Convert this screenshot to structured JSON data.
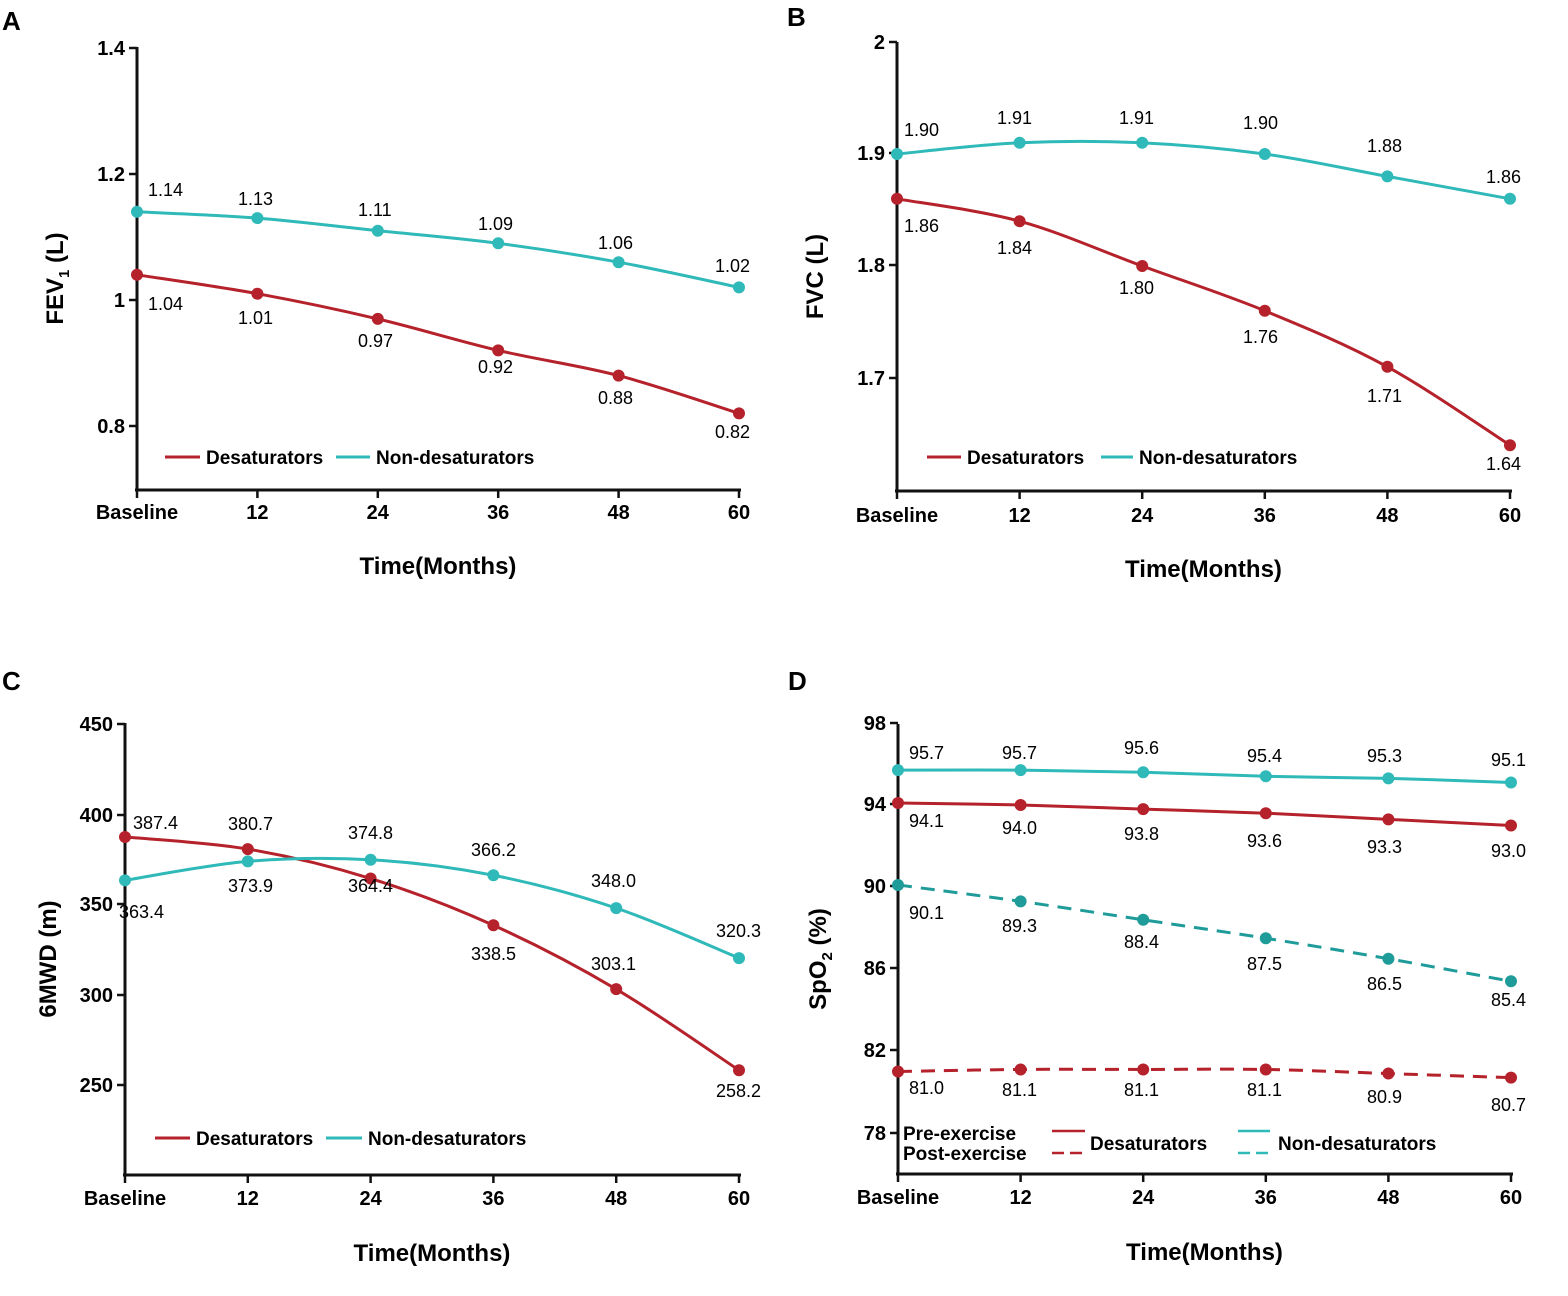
{
  "colors": {
    "desaturators": "#B5222B",
    "non_desaturators": "#2FB9B8",
    "non_desaturators_post": "#1F9C9A",
    "axis": "#111111"
  },
  "chart_data": [
    {
      "panel": "A",
      "type": "line",
      "xlabel": "Time(Months)",
      "ylabel_main": "FEV",
      "ylabel_sub": "1",
      "ylabel_tail": " (L)",
      "categories": [
        "Baseline",
        "12",
        "24",
        "36",
        "48",
        "60"
      ],
      "yticks": [
        "0.8",
        "1",
        "1.2",
        "1.4"
      ],
      "ylim": [
        0.7,
        1.4
      ],
      "series": [
        {
          "name": "Desaturators",
          "color_key": "desaturators",
          "values": [
            1.04,
            1.01,
            0.97,
            0.92,
            0.88,
            0.82
          ],
          "labels": [
            "1.04",
            "1.01",
            "0.97",
            "0.92",
            "0.88",
            "0.82"
          ]
        },
        {
          "name": "Non-desaturators",
          "color_key": "non_desaturators",
          "values": [
            1.14,
            1.13,
            1.11,
            1.09,
            1.06,
            1.02
          ],
          "labels": [
            "1.14",
            "1.13",
            "1.11",
            "1.09",
            "1.06",
            "1.02"
          ]
        }
      ],
      "legend": [
        "Desaturators",
        "Non-desaturators"
      ]
    },
    {
      "panel": "B",
      "type": "line",
      "xlabel": "Time(Months)",
      "ylabel_main": "FVC (L)",
      "categories": [
        "Baseline",
        "12",
        "24",
        "36",
        "48",
        "60"
      ],
      "yticks": [
        "1.7",
        "1.8",
        "1.9",
        "2"
      ],
      "ylim": [
        1.6,
        2.0
      ],
      "series": [
        {
          "name": "Desaturators",
          "color_key": "desaturators",
          "values": [
            1.86,
            1.84,
            1.8,
            1.76,
            1.71,
            1.64
          ],
          "labels": [
            "1.86",
            "1.84",
            "1.80",
            "1.76",
            "1.71",
            "1.64"
          ]
        },
        {
          "name": "Non-desaturators",
          "color_key": "non_desaturators",
          "values": [
            1.9,
            1.91,
            1.91,
            1.9,
            1.88,
            1.86
          ],
          "labels": [
            "1.90",
            "1.91",
            "1.91",
            "1.90",
            "1.88",
            "1.86"
          ]
        }
      ],
      "legend": [
        "Desaturators",
        "Non-desaturators"
      ]
    },
    {
      "panel": "C",
      "type": "line",
      "xlabel": "Time(Months)",
      "ylabel_main": "6MWD (m)",
      "categories": [
        "Baseline",
        "12",
        "24",
        "36",
        "48",
        "60"
      ],
      "yticks": [
        "250",
        "300",
        "350",
        "400",
        "450"
      ],
      "ylim": [
        200,
        450
      ],
      "series": [
        {
          "name": "Desaturators",
          "color_key": "desaturators",
          "values": [
            387.4,
            380.7,
            364.4,
            338.5,
            303.1,
            258.2
          ],
          "labels": [
            "387.4",
            "380.7",
            "364.4",
            "338.5",
            "303.1",
            "258.2"
          ]
        },
        {
          "name": "Non-desaturators",
          "color_key": "non_desaturators",
          "values": [
            363.4,
            373.9,
            374.8,
            366.2,
            348.0,
            320.3
          ],
          "labels": [
            "363.4",
            "373.9",
            "374.8",
            "366.2",
            "348.0",
            "320.3"
          ]
        }
      ],
      "legend": [
        "Desaturators",
        "Non-desaturators"
      ]
    },
    {
      "panel": "D",
      "type": "line",
      "xlabel": "Time(Months)",
      "ylabel_main": "SpO",
      "ylabel_sub": "2",
      "ylabel_tail": " (%)",
      "categories": [
        "Baseline",
        "12",
        "24",
        "36",
        "48",
        "60"
      ],
      "yticks": [
        "78",
        "82",
        "86",
        "90",
        "94",
        "98"
      ],
      "ylim": [
        76,
        98
      ],
      "series": [
        {
          "name": "Desaturators (Pre-exercise)",
          "color_key": "desaturators",
          "dashed": false,
          "values": [
            94.1,
            94.0,
            93.8,
            93.6,
            93.3,
            93.0
          ],
          "labels": [
            "94.1",
            "94.0",
            "93.8",
            "93.6",
            "93.3",
            "93.0"
          ]
        },
        {
          "name": "Non-desaturators (Pre-exercise)",
          "color_key": "non_desaturators",
          "dashed": false,
          "values": [
            95.7,
            95.7,
            95.6,
            95.4,
            95.3,
            95.1
          ],
          "labels": [
            "95.7",
            "95.7",
            "95.6",
            "95.4",
            "95.3",
            "95.1"
          ]
        },
        {
          "name": "Non-desaturators (Post-exercise)",
          "color_key": "non_desaturators_post",
          "dashed": true,
          "values": [
            90.1,
            89.3,
            88.4,
            87.5,
            86.5,
            85.4
          ],
          "labels": [
            "90.1",
            "89.3",
            "88.4",
            "87.5",
            "86.5",
            "85.4"
          ]
        },
        {
          "name": "Desaturators (Post-exercise)",
          "color_key": "desaturators",
          "dashed": true,
          "values": [
            81.0,
            81.1,
            81.1,
            81.1,
            80.9,
            80.7
          ],
          "labels": [
            "81.0",
            "81.1",
            "81.1",
            "81.1",
            "80.9",
            "80.7"
          ]
        }
      ],
      "legend_rows": [
        "Pre-exercise",
        "Post-exercise"
      ],
      "legend": [
        "Desaturators",
        "Non-desaturators"
      ]
    }
  ]
}
